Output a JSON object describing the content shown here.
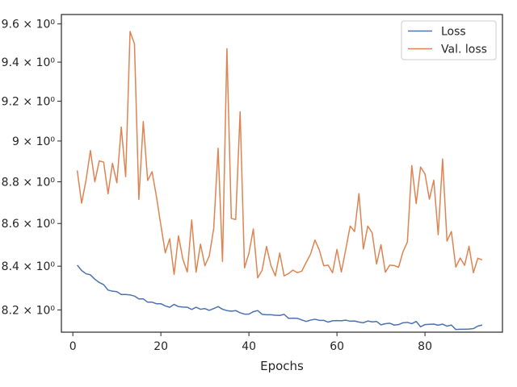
{
  "chart_data": {
    "type": "line",
    "xlabel": "Epochs",
    "ylabel": "",
    "yscale": "log",
    "xlim": [
      -2.6,
      97.6
    ],
    "ylim": [
      8.1,
      9.65
    ],
    "grid": false,
    "legend_placement": "top-right",
    "x_ticks": [
      0,
      20,
      40,
      60,
      80
    ],
    "x_tick_labels": [
      "0",
      "20",
      "40",
      "60",
      "80"
    ],
    "y_ticks": [
      8.2,
      8.4,
      8.6,
      8.8,
      9.0,
      9.2,
      9.4,
      9.6
    ],
    "y_tick_labels": [
      "8.2 × 10⁰",
      "8.4 × 10⁰",
      "8.6 × 10⁰",
      "8.8 × 10⁰",
      "9 × 10⁰",
      "9.2 × 10⁰",
      "9.4 × 10⁰",
      "9.6 × 10⁰"
    ],
    "x_start": 1,
    "series": [
      {
        "name": "Loss",
        "color": "#4c72b0",
        "values": [
          8.405,
          8.38,
          8.365,
          8.36,
          8.34,
          8.325,
          8.315,
          8.29,
          8.285,
          8.283,
          8.27,
          8.27,
          8.268,
          8.263,
          8.25,
          8.25,
          8.235,
          8.235,
          8.228,
          8.228,
          8.218,
          8.212,
          8.225,
          8.215,
          8.213,
          8.212,
          8.202,
          8.212,
          8.203,
          8.206,
          8.198,
          8.206,
          8.215,
          8.203,
          8.197,
          8.194,
          8.197,
          8.187,
          8.181,
          8.181,
          8.192,
          8.197,
          8.18,
          8.178,
          8.178,
          8.176,
          8.175,
          8.18,
          8.162,
          8.163,
          8.162,
          8.155,
          8.148,
          8.154,
          8.158,
          8.153,
          8.153,
          8.145,
          8.151,
          8.152,
          8.151,
          8.154,
          8.149,
          8.15,
          8.145,
          8.142,
          8.15,
          8.146,
          8.148,
          8.133,
          8.138,
          8.14,
          8.132,
          8.134,
          8.142,
          8.144,
          8.138,
          8.148,
          8.124,
          8.134,
          8.135,
          8.136,
          8.131,
          8.136,
          8.127,
          8.132,
          8.112,
          8.113,
          8.113,
          8.114,
          8.116,
          8.127,
          8.132
        ]
      },
      {
        "name": "Val. loss",
        "color": "#dd8452",
        "values": [
          8.855,
          8.697,
          8.808,
          8.953,
          8.8,
          8.902,
          8.896,
          8.742,
          8.89,
          8.795,
          9.07,
          8.825,
          9.56,
          9.495,
          8.715,
          9.097,
          8.806,
          8.849,
          8.728,
          8.592,
          8.462,
          8.528,
          8.362,
          8.542,
          8.432,
          8.373,
          8.617,
          8.372,
          8.503,
          8.402,
          8.448,
          8.576,
          8.964,
          8.422,
          9.47,
          8.624,
          8.619,
          9.146,
          8.392,
          8.46,
          8.574,
          8.346,
          8.381,
          8.492,
          8.403,
          8.355,
          8.461,
          8.355,
          8.366,
          8.382,
          8.37,
          8.377,
          8.417,
          8.456,
          8.522,
          8.475,
          8.402,
          8.405,
          8.37,
          8.478,
          8.373,
          8.478,
          8.588,
          8.562,
          8.743,
          8.48,
          8.588,
          8.556,
          8.41,
          8.5,
          8.372,
          8.405,
          8.403,
          8.395,
          8.467,
          8.513,
          8.879,
          8.695,
          8.872,
          8.838,
          8.716,
          8.808,
          8.547,
          8.911,
          8.517,
          8.562,
          8.396,
          8.438,
          8.404,
          8.493,
          8.37,
          8.437,
          8.429
        ]
      }
    ]
  }
}
